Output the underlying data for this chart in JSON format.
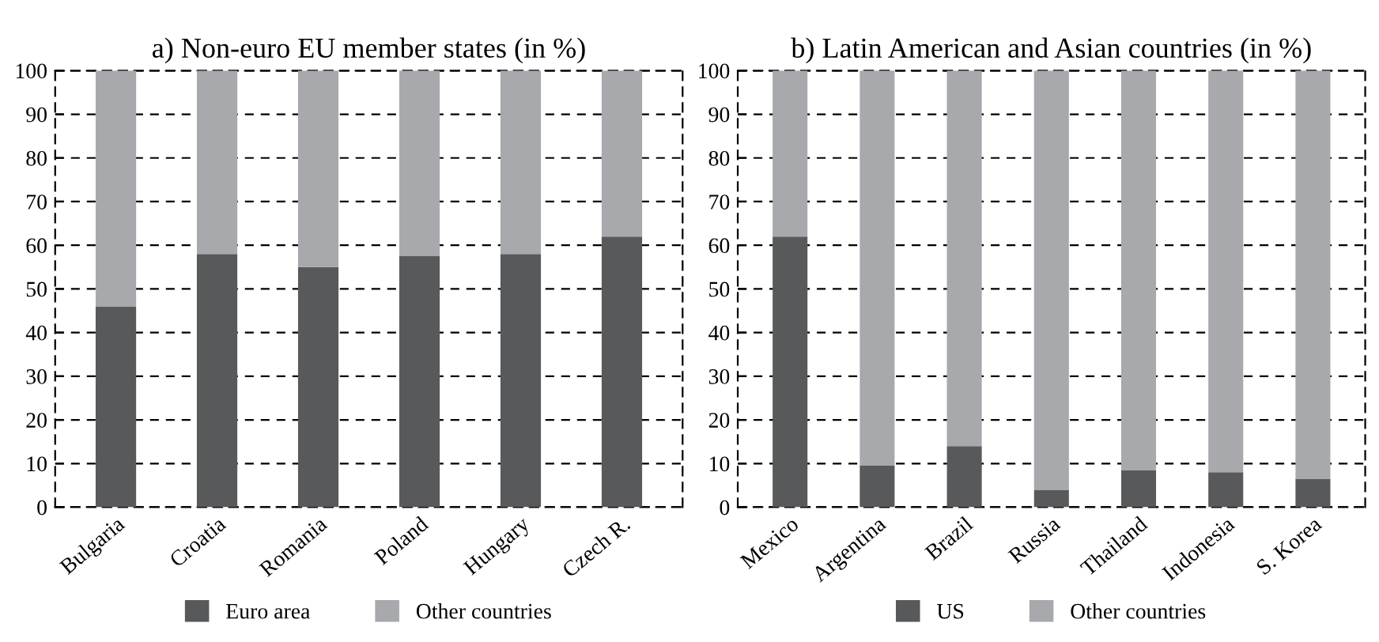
{
  "chart_data": [
    {
      "type": "bar",
      "title": "a) Non-euro EU member states (in %)",
      "categories": [
        "Bulgaria",
        "Croatia",
        "Romania",
        "Poland",
        "Hungary",
        "Czech R."
      ],
      "stacked": true,
      "ylim": [
        0,
        100
      ],
      "yticks": [
        0,
        10,
        20,
        30,
        40,
        50,
        60,
        70,
        80,
        90,
        100
      ],
      "grid": "y",
      "legend": "bottom",
      "series": [
        {
          "name": "Euro area",
          "color": "#58595b",
          "values": [
            46,
            58,
            55,
            57.5,
            58,
            62
          ]
        },
        {
          "name": "Other countries",
          "color": "#a7a9ac",
          "values": [
            54,
            42,
            45,
            42.5,
            42,
            38
          ]
        }
      ]
    },
    {
      "type": "bar",
      "title": "b) Latin American and Asian countries (in %)",
      "categories": [
        "Mexico",
        "Argentina",
        "Brazil",
        "Russia",
        "Thailand",
        "Indonesia",
        "S. Korea"
      ],
      "stacked": true,
      "ylim": [
        0,
        100
      ],
      "yticks": [
        0,
        10,
        20,
        30,
        40,
        50,
        60,
        70,
        80,
        90,
        100
      ],
      "grid": "y",
      "legend": "bottom",
      "series": [
        {
          "name": "US",
          "color": "#58595b",
          "values": [
            62,
            9.5,
            14,
            4,
            8.5,
            8,
            6.5
          ]
        },
        {
          "name": "Other countries",
          "color": "#a7a9ac",
          "values": [
            38,
            90.5,
            86,
            96,
            91.5,
            92,
            93.5
          ]
        }
      ]
    }
  ]
}
